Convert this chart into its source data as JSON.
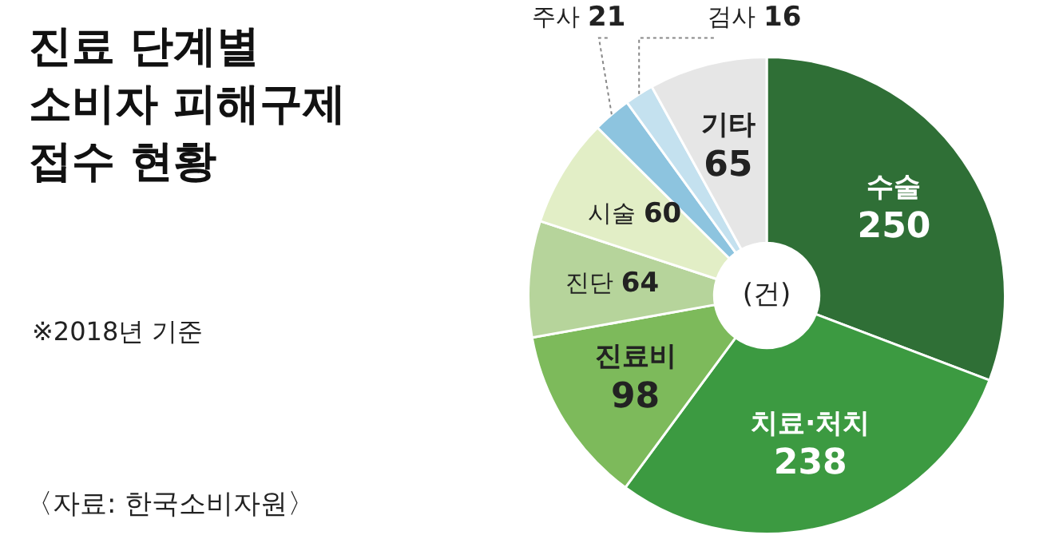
{
  "chart_data": {
    "type": "donut",
    "title": "진료 단계별\n소비자 피해구제\n접수 현황",
    "subtitle": "※2018년 기준",
    "categories": [
      "수술",
      "치료·처치",
      "진료비",
      "진단",
      "시술",
      "주사",
      "검사",
      "기타"
    ],
    "values": [
      250,
      238,
      98,
      64,
      60,
      21,
      16,
      65
    ],
    "colors": [
      "#2f6f36",
      "#3c9a41",
      "#7dba5b",
      "#b6d49b",
      "#e2eec6",
      "#8dc4df",
      "#c4e1ef",
      "#e6e6e6"
    ],
    "data_labels": true,
    "legend": false,
    "annotations": [
      "(건)",
      "〈자료: 한국소비자원〉"
    ]
  }
}
